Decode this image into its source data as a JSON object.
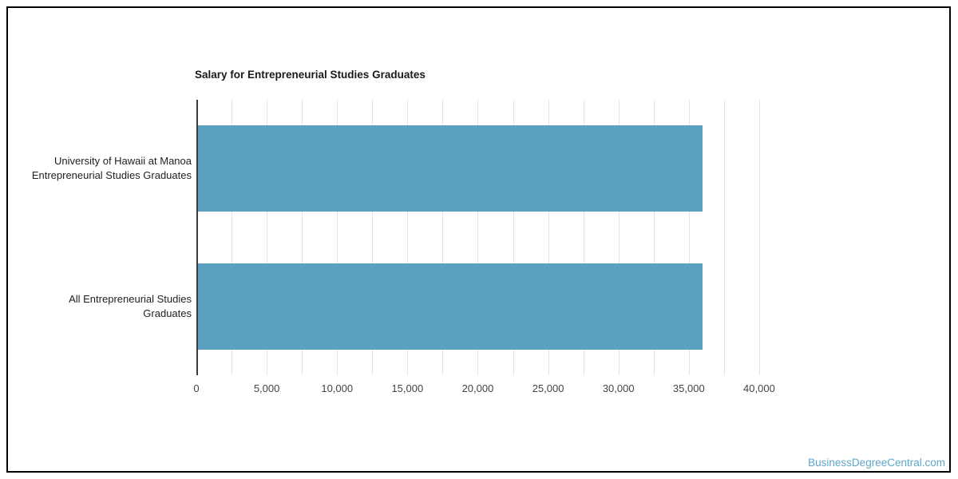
{
  "page": {
    "background": "#FFFFFF",
    "frame_border_color": "#000000"
  },
  "watermark": {
    "text": "BusinessDegreeCentral.com",
    "color": "#5EA7C9"
  },
  "chart_data": {
    "type": "bar",
    "orientation": "horizontal",
    "title": "Salary for Entrepreneurial Studies Graduates",
    "title_color": "#1A1A1A",
    "categories": [
      "University of Hawaii at Manoa Entrepreneurial Studies Graduates",
      "All Entrepreneurial Studies Graduates"
    ],
    "category_label_lines": [
      [
        "University of Hawaii at Manoa",
        "Entrepreneurial Studies Graduates"
      ],
      [
        "All Entrepreneurial Studies",
        "Graduates"
      ]
    ],
    "values": [
      36000,
      36000
    ],
    "xlabel": "",
    "ylabel": "",
    "xlim": [
      0,
      42500
    ],
    "x_major_ticks": [
      0,
      5000,
      10000,
      15000,
      20000,
      25000,
      30000,
      35000,
      40000
    ],
    "x_tick_labels": [
      "0",
      "5,000",
      "10,000",
      "15,000",
      "20,000",
      "25,000",
      "30,000",
      "35,000",
      "40,000"
    ],
    "gridline_interval": 2500,
    "max_gridline": 40000,
    "grid": true,
    "legend": "none",
    "bar_color": "#5AA1BF",
    "gridline_color": "#E4E4E4",
    "axis_color": "#3B3B3B",
    "tick_label_color": "#444444",
    "category_label_color": "#1F1F1F"
  }
}
